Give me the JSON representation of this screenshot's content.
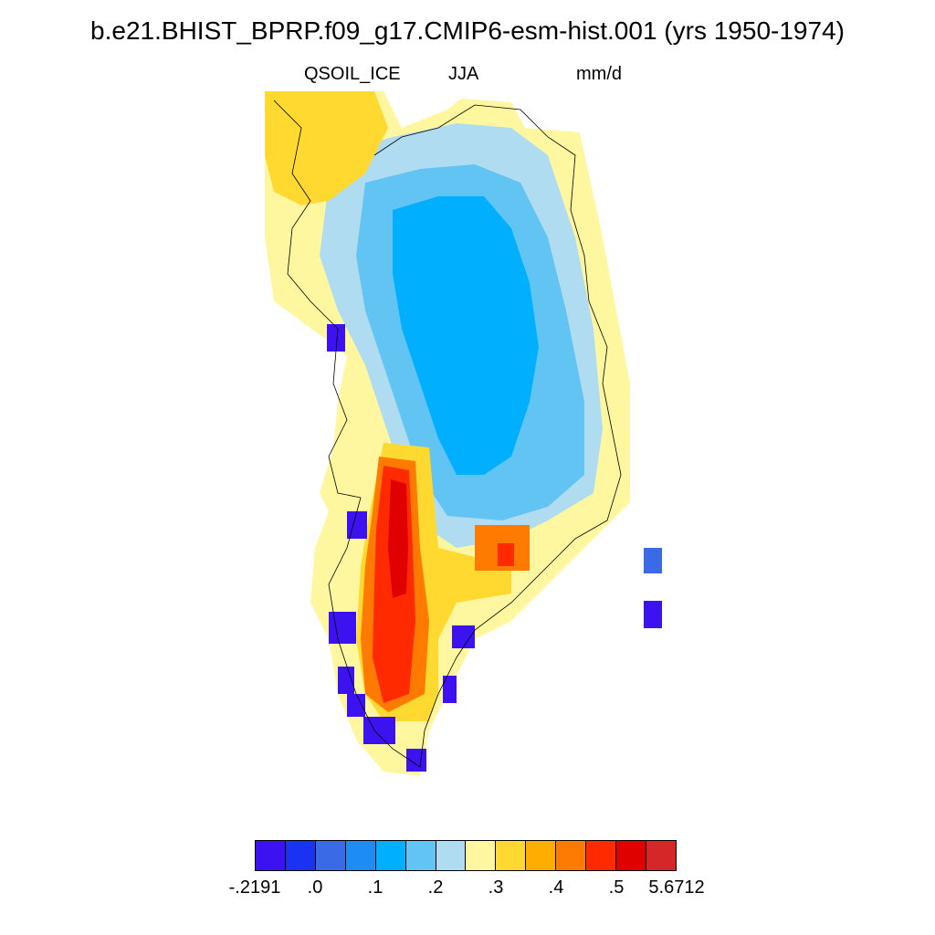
{
  "title": "b.e21.BHIST_BPRP.f09_g17.CMIP6-esm-hist.001 (yrs 1950-1974)",
  "subtitles": {
    "variable": "QSOIL_ICE",
    "season": "JJA",
    "units": "mm/d"
  },
  "colorbar": {
    "colors": [
      "#3d12f0",
      "#1a32f2",
      "#3a6ae6",
      "#1e8cf5",
      "#00b0ff",
      "#62c4f2",
      "#b0dcf2",
      "#fff7a0",
      "#ffd830",
      "#ffad00",
      "#ff7a00",
      "#ff2a00",
      "#e00000",
      "#d42828"
    ],
    "labels": [
      "-.2191",
      ".0",
      ".1",
      ".2",
      ".3",
      ".4",
      ".5",
      "5.6712"
    ]
  },
  "region_palette": {
    "sw_coast_peak": "#e00000",
    "sw_coast_high": "#ff2a00",
    "sw_coast_mid": "#ff7a00",
    "west_margin": "#ffd830",
    "margin_light": "#fff7a0",
    "ablation_blue": "#62c4f2",
    "outer_blue": "#b0dcf2",
    "interior": "#00b0ff",
    "negative": "#3d12f0"
  }
}
